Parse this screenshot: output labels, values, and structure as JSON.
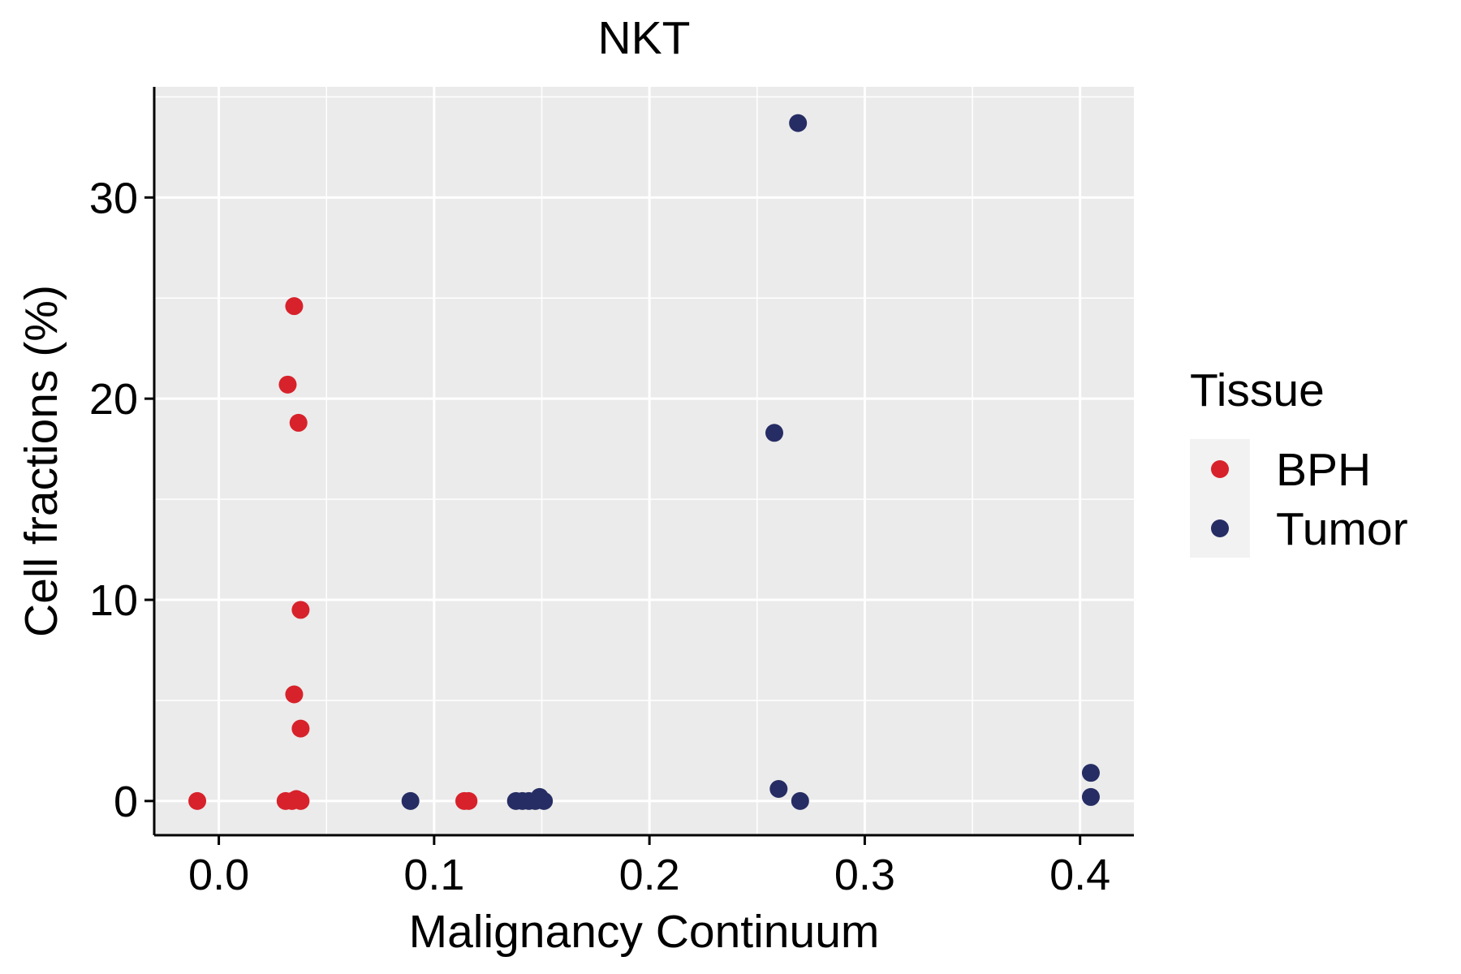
{
  "chart_data": {
    "type": "scatter",
    "title": "NKT",
    "xlabel": "Malignancy Continuum",
    "ylabel": "Cell fractions (%)",
    "xlim": [
      -0.03,
      0.425
    ],
    "ylim": [
      -1.7,
      35.5
    ],
    "x_ticks": [
      0.0,
      0.1,
      0.2,
      0.3,
      0.4
    ],
    "x_tick_labels": [
      "0.0",
      "0.1",
      "0.2",
      "0.3",
      "0.4"
    ],
    "y_ticks": [
      0,
      10,
      20,
      30
    ],
    "y_tick_labels": [
      "0",
      "10",
      "20",
      "30"
    ],
    "grid": true,
    "legend": {
      "title": "Tissue",
      "position": "right",
      "entries": [
        {
          "label": "BPH",
          "color": "#D7222B"
        },
        {
          "label": "Tumor",
          "color": "#262D64"
        }
      ]
    },
    "series": [
      {
        "name": "BPH",
        "color": "#D7222B",
        "points": [
          {
            "x": -0.01,
            "y": 0.0
          },
          {
            "x": 0.031,
            "y": 0.0
          },
          {
            "x": 0.034,
            "y": 0.0
          },
          {
            "x": 0.036,
            "y": 0.1
          },
          {
            "x": 0.038,
            "y": 0.0
          },
          {
            "x": 0.032,
            "y": 20.7
          },
          {
            "x": 0.035,
            "y": 24.6
          },
          {
            "x": 0.037,
            "y": 18.8
          },
          {
            "x": 0.038,
            "y": 9.5
          },
          {
            "x": 0.035,
            "y": 5.3
          },
          {
            "x": 0.038,
            "y": 3.6
          },
          {
            "x": 0.114,
            "y": 0.0
          },
          {
            "x": 0.116,
            "y": 0.0
          }
        ]
      },
      {
        "name": "Tumor",
        "color": "#262D64",
        "points": [
          {
            "x": 0.089,
            "y": 0.0
          },
          {
            "x": 0.138,
            "y": 0.0
          },
          {
            "x": 0.141,
            "y": 0.0
          },
          {
            "x": 0.144,
            "y": 0.0
          },
          {
            "x": 0.147,
            "y": 0.0
          },
          {
            "x": 0.149,
            "y": 0.2
          },
          {
            "x": 0.151,
            "y": 0.0
          },
          {
            "x": 0.269,
            "y": 33.7
          },
          {
            "x": 0.258,
            "y": 18.3
          },
          {
            "x": 0.26,
            "y": 0.6
          },
          {
            "x": 0.27,
            "y": 0.0
          },
          {
            "x": 0.405,
            "y": 1.4
          },
          {
            "x": 0.405,
            "y": 0.2
          }
        ]
      }
    ]
  }
}
